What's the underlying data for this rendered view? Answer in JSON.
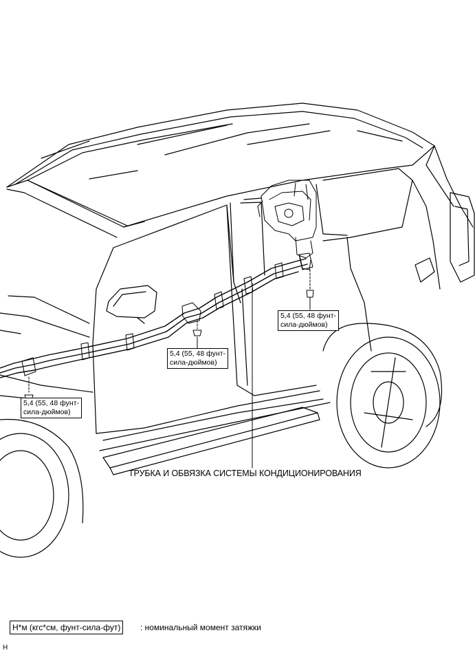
{
  "callouts": {
    "torque_left": "5,4 (55, 48 фунт-\nсила-дюймов)",
    "torque_middle": "5,4 (55, 48 фунт-\nсила-дюймов)",
    "torque_right": "5,4 (55, 48 фунт-\nсила-дюймов)"
  },
  "main_label": "ТРУБКА И ОБВЯЗКА СИСТЕМЫ КОНДИЦИОНИРОВАНИЯ",
  "legend": {
    "box_text": "Н*м (кгс*см, фунт-сила-фут)",
    "description": ": номинальный момент затяжки"
  },
  "corner_mark": "H"
}
